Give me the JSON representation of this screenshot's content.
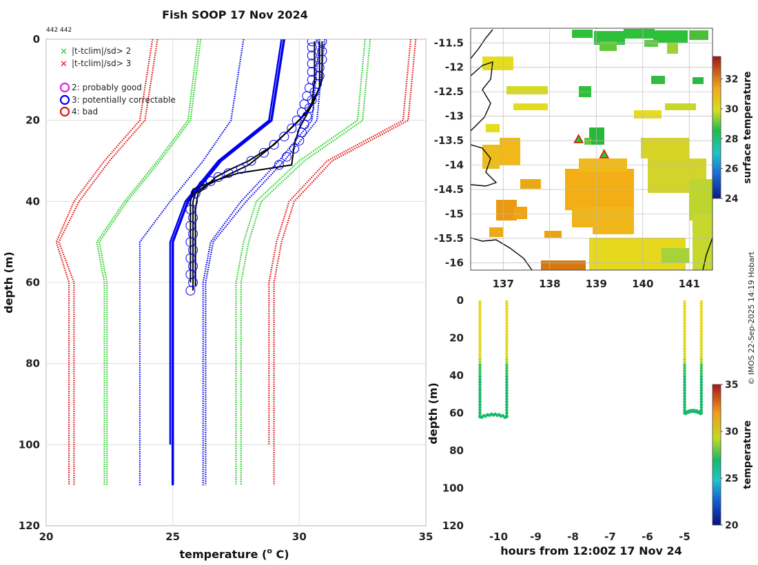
{
  "title": "Fish SOOP 17 Nov 2024",
  "counts": "442 442",
  "credit": "© IMOS 22-Sep-2025 14:19 Hobart",
  "colors": {
    "green": "#22cc22",
    "red": "#dd1111",
    "blue": "#0000ee",
    "magenta": "#e020e0",
    "black": "#000000"
  },
  "legend": {
    "criteria": [
      {
        "label": "|t-tclim|/sd> 2",
        "symbol": "x",
        "color": "#22cc22"
      },
      {
        "label": "|t-tclim|/sd> 3",
        "symbol": "x",
        "color": "#dd1111"
      }
    ],
    "flags": [
      {
        "label": "2: probably good",
        "symbol": "o",
        "color": "#e020e0"
      },
      {
        "label": "3: potentially correctable",
        "symbol": "o",
        "color": "#0000ee"
      },
      {
        "label": "4: bad",
        "symbol": "o",
        "color": "#dd1111"
      }
    ]
  },
  "chart_data": [
    {
      "id": "profile",
      "type": "line",
      "xlabel": "temperature (",
      "xlabel_sup": "o",
      "xlabel_end": " C)",
      "ylabel": "depth (m)",
      "xlim": [
        20,
        35
      ],
      "ylim": [
        0,
        120
      ],
      "xticks": [
        20,
        25,
        30,
        35
      ],
      "yticks": [
        0,
        20,
        40,
        60,
        80,
        100,
        120
      ],
      "grid": true,
      "series": [
        {
          "name": "clim -3sd",
          "color": "#dd1111",
          "style": "dotted",
          "points": [
            [
              24.4,
              0
            ],
            [
              23.9,
              20
            ],
            [
              22.5,
              30
            ],
            [
              21.3,
              40
            ],
            [
              20.5,
              50
            ],
            [
              21.1,
              60
            ],
            [
              21.1,
              110
            ]
          ]
        },
        {
          "name": "clim -3sd b",
          "color": "#dd1111",
          "style": "dotted",
          "points": [
            [
              24.2,
              0
            ],
            [
              23.7,
              20
            ],
            [
              22.3,
              30
            ],
            [
              21.1,
              40
            ],
            [
              20.4,
              50
            ],
            [
              20.9,
              60
            ],
            [
              20.9,
              110
            ]
          ]
        },
        {
          "name": "clim -2sd",
          "color": "#22cc22",
          "style": "dotted",
          "points": [
            [
              26.1,
              0
            ],
            [
              25.7,
              20
            ],
            [
              24.5,
              30
            ],
            [
              23.2,
              40
            ],
            [
              22.1,
              50
            ],
            [
              22.4,
              60
            ],
            [
              22.4,
              110
            ]
          ]
        },
        {
          "name": "clim -2sd b",
          "color": "#22cc22",
          "style": "dotted",
          "points": [
            [
              26.0,
              0
            ],
            [
              25.6,
              20
            ],
            [
              24.4,
              30
            ],
            [
              23.1,
              40
            ],
            [
              22.0,
              50
            ],
            [
              22.3,
              60
            ],
            [
              22.3,
              110
            ]
          ]
        },
        {
          "name": "clim -1sd",
          "color": "#0000ee",
          "style": "dotted",
          "points": [
            [
              27.8,
              0
            ],
            [
              27.3,
              20
            ],
            [
              26.2,
              30
            ],
            [
              24.9,
              40
            ],
            [
              23.7,
              50
            ],
            [
              23.7,
              60
            ],
            [
              23.7,
              110
            ]
          ]
        },
        {
          "name": "clim +1sd",
          "color": "#0000ee",
          "style": "dotted",
          "points": [
            [
              31.0,
              0
            ],
            [
              30.7,
              20
            ],
            [
              29.4,
              30
            ],
            [
              27.9,
              40
            ],
            [
              26.6,
              50
            ],
            [
              26.3,
              60
            ],
            [
              26.3,
              110
            ]
          ]
        },
        {
          "name": "clim +1sd b",
          "color": "#0000ee",
          "style": "dotted",
          "points": [
            [
              30.8,
              0
            ],
            [
              30.5,
              20
            ],
            [
              29.2,
              30
            ],
            [
              27.7,
              40
            ],
            [
              26.5,
              50
            ],
            [
              26.2,
              60
            ],
            [
              26.2,
              110
            ]
          ]
        },
        {
          "name": "clim +2sd",
          "color": "#22cc22",
          "style": "dotted",
          "points": [
            [
              32.8,
              0
            ],
            [
              32.5,
              20
            ],
            [
              30.2,
              30
            ],
            [
              28.5,
              40
            ],
            [
              28.0,
              50
            ],
            [
              27.7,
              60
            ],
            [
              27.7,
              110
            ]
          ]
        },
        {
          "name": "clim +2sd b",
          "color": "#22cc22",
          "style": "dotted",
          "points": [
            [
              32.6,
              0
            ],
            [
              32.3,
              20
            ],
            [
              30.0,
              30
            ],
            [
              28.3,
              40
            ],
            [
              27.8,
              50
            ],
            [
              27.5,
              60
            ],
            [
              27.5,
              110
            ]
          ]
        },
        {
          "name": "clim +3sd",
          "color": "#dd1111",
          "style": "dotted",
          "points": [
            [
              34.6,
              0
            ],
            [
              34.3,
              20
            ],
            [
              31.3,
              30
            ],
            [
              29.8,
              40
            ],
            [
              29.3,
              50
            ],
            [
              29.0,
              60
            ],
            [
              29.0,
              110
            ]
          ]
        },
        {
          "name": "clim +3sd b",
          "color": "#dd1111",
          "style": "dotted",
          "points": [
            [
              34.4,
              0
            ],
            [
              34.1,
              20
            ],
            [
              31.1,
              30
            ],
            [
              29.6,
              40
            ],
            [
              29.1,
              50
            ],
            [
              28.8,
              60
            ],
            [
              28.8,
              100
            ]
          ]
        },
        {
          "name": "clim mean",
          "color": "#0000ee",
          "style": "solid",
          "width": 3.5,
          "points": [
            [
              29.4,
              0
            ],
            [
              28.9,
              20
            ],
            [
              26.9,
              30
            ],
            [
              25.6,
              40
            ],
            [
              25.0,
              50
            ],
            [
              25.0,
              60
            ],
            [
              25.0,
              110
            ]
          ]
        },
        {
          "name": "clim mean b",
          "color": "#0000ee",
          "style": "solid",
          "width": 2.5,
          "points": [
            [
              29.3,
              0
            ],
            [
              28.8,
              20
            ],
            [
              26.8,
              30
            ],
            [
              25.5,
              40
            ],
            [
              24.9,
              50
            ],
            [
              24.9,
              60
            ],
            [
              24.9,
              100
            ]
          ]
        },
        {
          "name": "profile 1",
          "color": "#000000",
          "style": "solid",
          "width": 2,
          "points": [
            [
              30.6,
              0.5
            ],
            [
              30.6,
              10
            ],
            [
              30.5,
              16
            ],
            [
              30.0,
              20
            ],
            [
              29.5,
              23
            ],
            [
              28.8,
              27
            ],
            [
              28.0,
              31
            ],
            [
              27.0,
              34
            ],
            [
              26.2,
              36.5
            ],
            [
              25.9,
              38
            ],
            [
              25.8,
              40
            ],
            [
              25.8,
              62
            ]
          ]
        },
        {
          "name": "profile 2",
          "color": "#000000",
          "style": "solid",
          "width": 2,
          "points": [
            [
              30.9,
              0.5
            ],
            [
              30.9,
              10
            ],
            [
              30.6,
              15
            ],
            [
              30.0,
              22
            ],
            [
              29.8,
              26
            ],
            [
              29.7,
              31
            ],
            [
              27.6,
              33
            ],
            [
              26.6,
              35
            ],
            [
              25.8,
              37
            ],
            [
              25.7,
              40
            ],
            [
              25.7,
              60
            ]
          ]
        },
        {
          "name": "profile 3",
          "color": "#000000",
          "style": "solid",
          "width": 2,
          "points": [
            [
              30.8,
              0.5
            ],
            [
              30.8,
              12
            ],
            [
              30.3,
              18
            ],
            [
              29.0,
              26
            ],
            [
              28.0,
              30
            ],
            [
              27.3,
              32
            ],
            [
              26.7,
              34
            ],
            [
              26.2,
              37
            ],
            [
              26.0,
              38
            ],
            [
              25.9,
              42
            ],
            [
              25.9,
              61
            ]
          ]
        }
      ],
      "flagged_points": [
        [
          30.5,
          0.5
        ],
        [
          30.9,
          0.5
        ],
        [
          30.5,
          2
        ],
        [
          30.9,
          3
        ],
        [
          30.5,
          4
        ],
        [
          30.9,
          5
        ],
        [
          30.5,
          6
        ],
        [
          30.8,
          7
        ],
        [
          30.5,
          8
        ],
        [
          30.8,
          9
        ],
        [
          30.5,
          10
        ],
        [
          30.7,
          11
        ],
        [
          30.4,
          12
        ],
        [
          30.6,
          13
        ],
        [
          30.3,
          14
        ],
        [
          30.5,
          15
        ],
        [
          30.2,
          16
        ],
        [
          30.4,
          17
        ],
        [
          30.1,
          18
        ],
        [
          30.3,
          19
        ],
        [
          29.9,
          20
        ],
        [
          30.2,
          21
        ],
        [
          29.7,
          22
        ],
        [
          30.1,
          23
        ],
        [
          29.4,
          24
        ],
        [
          30.0,
          25
        ],
        [
          29.0,
          26
        ],
        [
          29.8,
          27
        ],
        [
          28.6,
          28
        ],
        [
          29.5,
          29
        ],
        [
          28.1,
          30
        ],
        [
          29.2,
          31
        ],
        [
          27.7,
          32
        ],
        [
          27.2,
          33
        ],
        [
          26.8,
          34
        ],
        [
          26.5,
          35
        ],
        [
          26.2,
          36
        ],
        [
          25.9,
          38
        ],
        [
          25.8,
          40
        ],
        [
          25.7,
          42
        ],
        [
          25.8,
          44
        ],
        [
          25.7,
          46
        ],
        [
          25.8,
          48
        ],
        [
          25.7,
          50
        ],
        [
          25.8,
          52
        ],
        [
          25.7,
          54
        ],
        [
          25.8,
          56
        ],
        [
          25.7,
          58
        ],
        [
          25.8,
          60
        ],
        [
          25.7,
          62
        ]
      ]
    },
    {
      "id": "map",
      "type": "heatmap",
      "xticks": [
        137,
        138,
        139,
        140,
        141
      ],
      "yticks": [
        -11.5,
        -12,
        -12.5,
        -13,
        -13.5,
        -14,
        -14.5,
        -15,
        -15.5,
        -16
      ],
      "xlim": [
        136.3,
        141.5
      ],
      "ylim": [
        -16.15,
        -11.2
      ],
      "colorbar_label": "surface temperature",
      "colorbar_ticks": [
        24,
        26,
        28,
        30,
        32
      ],
      "colorbar_range": [
        24,
        33.5
      ],
      "markers": [
        {
          "lon": 138.62,
          "lat": -13.47,
          "fill": "#22cc22",
          "edge": "#dd1111"
        },
        {
          "lon": 139.17,
          "lat": -13.78,
          "fill": "#22cc22",
          "edge": "#dd1111"
        }
      ]
    },
    {
      "id": "timeseries",
      "type": "scatter",
      "xlabel": "hours from 12:00Z 17 Nov 24",
      "ylabel": "depth (m)",
      "xlim": [
        -10.75,
        -4.25
      ],
      "ylim": [
        0,
        120
      ],
      "xticks": [
        -10,
        -9,
        -8,
        -7,
        -6,
        -5
      ],
      "yticks": [
        0,
        20,
        40,
        60,
        80,
        100,
        120
      ],
      "colorbar_label": "temperature",
      "colorbar_ticks": [
        20,
        25,
        30,
        35
      ],
      "colorbar_range": [
        20,
        35
      ],
      "casts": [
        {
          "down_hour": -10.5,
          "up_hour": -9.78,
          "bottom_depth": 62
        },
        {
          "down_hour": -5.0,
          "up_hour": -4.55,
          "bottom_depth": 60
        }
      ]
    }
  ]
}
